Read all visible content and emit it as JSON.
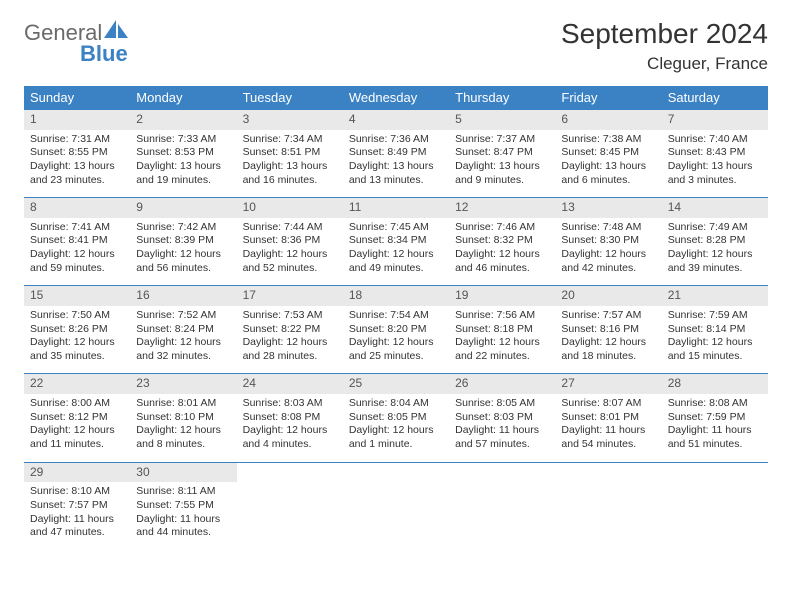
{
  "brand": {
    "name_gray": "General",
    "name_blue": "Blue",
    "sail_color": "#3b82c4",
    "text_color": "#6a6a6a"
  },
  "page": {
    "title": "September 2024",
    "location": "Cleguer, France"
  },
  "colors": {
    "header_bg": "#3b82c4",
    "header_text": "#ffffff",
    "daynum_bg": "#e9e9e9",
    "row_border": "#3b82c4",
    "body_text": "#333333"
  },
  "calendar": {
    "columns": [
      "Sunday",
      "Monday",
      "Tuesday",
      "Wednesday",
      "Thursday",
      "Friday",
      "Saturday"
    ],
    "days": [
      {
        "n": "1",
        "sunrise": "7:31 AM",
        "sunset": "8:55 PM",
        "dl": "13 hours and 23 minutes."
      },
      {
        "n": "2",
        "sunrise": "7:33 AM",
        "sunset": "8:53 PM",
        "dl": "13 hours and 19 minutes."
      },
      {
        "n": "3",
        "sunrise": "7:34 AM",
        "sunset": "8:51 PM",
        "dl": "13 hours and 16 minutes."
      },
      {
        "n": "4",
        "sunrise": "7:36 AM",
        "sunset": "8:49 PM",
        "dl": "13 hours and 13 minutes."
      },
      {
        "n": "5",
        "sunrise": "7:37 AM",
        "sunset": "8:47 PM",
        "dl": "13 hours and 9 minutes."
      },
      {
        "n": "6",
        "sunrise": "7:38 AM",
        "sunset": "8:45 PM",
        "dl": "13 hours and 6 minutes."
      },
      {
        "n": "7",
        "sunrise": "7:40 AM",
        "sunset": "8:43 PM",
        "dl": "13 hours and 3 minutes."
      },
      {
        "n": "8",
        "sunrise": "7:41 AM",
        "sunset": "8:41 PM",
        "dl": "12 hours and 59 minutes."
      },
      {
        "n": "9",
        "sunrise": "7:42 AM",
        "sunset": "8:39 PM",
        "dl": "12 hours and 56 minutes."
      },
      {
        "n": "10",
        "sunrise": "7:44 AM",
        "sunset": "8:36 PM",
        "dl": "12 hours and 52 minutes."
      },
      {
        "n": "11",
        "sunrise": "7:45 AM",
        "sunset": "8:34 PM",
        "dl": "12 hours and 49 minutes."
      },
      {
        "n": "12",
        "sunrise": "7:46 AM",
        "sunset": "8:32 PM",
        "dl": "12 hours and 46 minutes."
      },
      {
        "n": "13",
        "sunrise": "7:48 AM",
        "sunset": "8:30 PM",
        "dl": "12 hours and 42 minutes."
      },
      {
        "n": "14",
        "sunrise": "7:49 AM",
        "sunset": "8:28 PM",
        "dl": "12 hours and 39 minutes."
      },
      {
        "n": "15",
        "sunrise": "7:50 AM",
        "sunset": "8:26 PM",
        "dl": "12 hours and 35 minutes."
      },
      {
        "n": "16",
        "sunrise": "7:52 AM",
        "sunset": "8:24 PM",
        "dl": "12 hours and 32 minutes."
      },
      {
        "n": "17",
        "sunrise": "7:53 AM",
        "sunset": "8:22 PM",
        "dl": "12 hours and 28 minutes."
      },
      {
        "n": "18",
        "sunrise": "7:54 AM",
        "sunset": "8:20 PM",
        "dl": "12 hours and 25 minutes."
      },
      {
        "n": "19",
        "sunrise": "7:56 AM",
        "sunset": "8:18 PM",
        "dl": "12 hours and 22 minutes."
      },
      {
        "n": "20",
        "sunrise": "7:57 AM",
        "sunset": "8:16 PM",
        "dl": "12 hours and 18 minutes."
      },
      {
        "n": "21",
        "sunrise": "7:59 AM",
        "sunset": "8:14 PM",
        "dl": "12 hours and 15 minutes."
      },
      {
        "n": "22",
        "sunrise": "8:00 AM",
        "sunset": "8:12 PM",
        "dl": "12 hours and 11 minutes."
      },
      {
        "n": "23",
        "sunrise": "8:01 AM",
        "sunset": "8:10 PM",
        "dl": "12 hours and 8 minutes."
      },
      {
        "n": "24",
        "sunrise": "8:03 AM",
        "sunset": "8:08 PM",
        "dl": "12 hours and 4 minutes."
      },
      {
        "n": "25",
        "sunrise": "8:04 AM",
        "sunset": "8:05 PM",
        "dl": "12 hours and 1 minute."
      },
      {
        "n": "26",
        "sunrise": "8:05 AM",
        "sunset": "8:03 PM",
        "dl": "11 hours and 57 minutes."
      },
      {
        "n": "27",
        "sunrise": "8:07 AM",
        "sunset": "8:01 PM",
        "dl": "11 hours and 54 minutes."
      },
      {
        "n": "28",
        "sunrise": "8:08 AM",
        "sunset": "7:59 PM",
        "dl": "11 hours and 51 minutes."
      },
      {
        "n": "29",
        "sunrise": "8:10 AM",
        "sunset": "7:57 PM",
        "dl": "11 hours and 47 minutes."
      },
      {
        "n": "30",
        "sunrise": "8:11 AM",
        "sunset": "7:55 PM",
        "dl": "11 hours and 44 minutes."
      }
    ],
    "labels": {
      "sunrise_prefix": "Sunrise: ",
      "sunset_prefix": "Sunset: ",
      "daylight_prefix": "Daylight: "
    },
    "start_weekday": 0,
    "rows": 5
  }
}
